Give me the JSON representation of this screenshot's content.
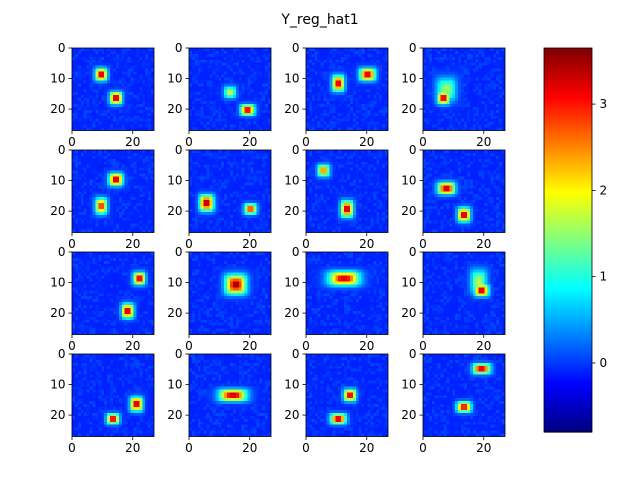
{
  "chart_data": {
    "type": "heatmap",
    "title": "Y_reg_hat1",
    "colormap": "jet",
    "grid_rows": 4,
    "grid_cols": 4,
    "image_size": [
      28,
      28
    ],
    "xlim": [
      0,
      27
    ],
    "ylim": [
      27,
      0
    ],
    "x_ticks": [
      0,
      20
    ],
    "y_ticks": [
      0,
      10,
      20
    ],
    "background_value": -0.1,
    "colorbar": {
      "min": -0.8,
      "max": 3.65,
      "ticks": [
        0,
        1,
        2,
        3
      ]
    },
    "panels": [
      {
        "blobs": [
          {
            "x": 10,
            "y": 9,
            "w": 3.5,
            "h": 3.5,
            "peak": 3.5
          },
          {
            "x": 15,
            "y": 17,
            "w": 3.5,
            "h": 3.5,
            "peak": 3.5
          }
        ]
      },
      {
        "blobs": [
          {
            "x": 14,
            "y": 15,
            "w": 3.5,
            "h": 3.5,
            "peak": 1.9
          },
          {
            "x": 20,
            "y": 21,
            "w": 4,
            "h": 3,
            "peak": 3.4
          }
        ]
      },
      {
        "blobs": [
          {
            "x": 11,
            "y": 12,
            "w": 3.5,
            "h": 4.5,
            "peak": 3.4
          },
          {
            "x": 21,
            "y": 9,
            "w": 4.5,
            "h": 3.5,
            "peak": 3.4
          }
        ]
      },
      {
        "blobs": [
          {
            "x": 8,
            "y": 14,
            "w": 6,
            "h": 7,
            "peak": 1.6
          },
          {
            "x": 7,
            "y": 17,
            "w": 3.5,
            "h": 3.5,
            "peak": 3.4
          }
        ]
      },
      {
        "blobs": [
          {
            "x": 15,
            "y": 10,
            "w": 4,
            "h": 3.5,
            "peak": 3.5
          },
          {
            "x": 10,
            "y": 19,
            "w": 3.5,
            "h": 4.5,
            "peak": 3.0
          }
        ]
      },
      {
        "blobs": [
          {
            "x": 6,
            "y": 18,
            "w": 4,
            "h": 4.5,
            "peak": 3.6
          },
          {
            "x": 21,
            "y": 20,
            "w": 3.5,
            "h": 3,
            "peak": 3.0
          }
        ]
      },
      {
        "blobs": [
          {
            "x": 6,
            "y": 7,
            "w": 3.5,
            "h": 3.5,
            "peak": 2.6
          },
          {
            "x": 14,
            "y": 20,
            "w": 3.5,
            "h": 4.5,
            "peak": 3.5
          }
        ]
      },
      {
        "blobs": [
          {
            "x": 8,
            "y": 13,
            "w": 5,
            "h": 3.5,
            "peak": 3.5
          },
          {
            "x": 14,
            "y": 22,
            "w": 3.5,
            "h": 4,
            "peak": 3.5
          }
        ]
      },
      {
        "blobs": [
          {
            "x": 23,
            "y": 9,
            "w": 3.5,
            "h": 3.5,
            "peak": 3.4
          },
          {
            "x": 19,
            "y": 20,
            "w": 3.5,
            "h": 4,
            "peak": 3.5
          }
        ]
      },
      {
        "blobs": [
          {
            "x": 16,
            "y": 11,
            "w": 6,
            "h": 5.5,
            "peak": 3.6
          }
        ]
      },
      {
        "blobs": [
          {
            "x": 13,
            "y": 9,
            "w": 9,
            "h": 4,
            "peak": 3.4
          }
        ]
      },
      {
        "blobs": [
          {
            "x": 19,
            "y": 10,
            "w": 5,
            "h": 7,
            "peak": 1.7
          },
          {
            "x": 20,
            "y": 13,
            "w": 4,
            "h": 3.5,
            "peak": 3.5
          }
        ]
      },
      {
        "blobs": [
          {
            "x": 14,
            "y": 22,
            "w": 3.5,
            "h": 3,
            "peak": 3.4
          },
          {
            "x": 22,
            "y": 17,
            "w": 3.5,
            "h": 4,
            "peak": 3.5
          }
        ]
      },
      {
        "blobs": [
          {
            "x": 15,
            "y": 14,
            "w": 8,
            "h": 3.5,
            "peak": 3.5
          }
        ]
      },
      {
        "blobs": [
          {
            "x": 15,
            "y": 14,
            "w": 3.5,
            "h": 3.5,
            "peak": 3.4
          },
          {
            "x": 11,
            "y": 22,
            "w": 4.5,
            "h": 3,
            "peak": 3.5
          }
        ]
      },
      {
        "blobs": [
          {
            "x": 20,
            "y": 5,
            "w": 5,
            "h": 3,
            "peak": 3.5
          },
          {
            "x": 14,
            "y": 18,
            "w": 4,
            "h": 3,
            "peak": 3.3
          }
        ]
      }
    ]
  }
}
